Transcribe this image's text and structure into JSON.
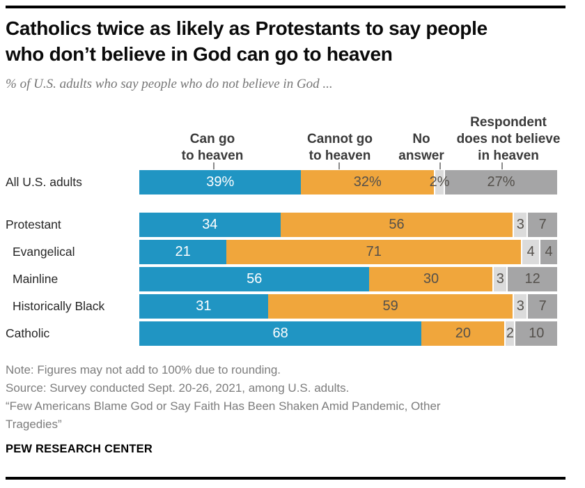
{
  "header": {
    "title_lines": [
      "Catholics twice as likely as Protestants to say people",
      "who don’t believe in God can go to heaven"
    ],
    "subtitle": "% of U.S. adults who say people who do not believe in God ..."
  },
  "chart_data": {
    "type": "bar",
    "stacked": true,
    "orientation": "horizontal",
    "xlim": [
      0,
      100
    ],
    "unit": "%",
    "columns": [
      {
        "name": "Can go to heaven",
        "label_lines": [
          "Can go",
          "to heaven"
        ]
      },
      {
        "name": "Cannot go to heaven",
        "label_lines": [
          "Cannot go",
          "to heaven"
        ]
      },
      {
        "name": "No answer",
        "label_lines": [
          "No",
          "answer"
        ]
      },
      {
        "name": "Respondent does not believe in heaven",
        "label_lines": [
          "Respondent",
          "does not believe",
          "in heaven"
        ]
      }
    ],
    "segment_colors": [
      "#2095c3",
      "#f0a63c",
      "#dbdbdb",
      "#a5a5a6"
    ],
    "rows": [
      {
        "category": "All U.S. adults",
        "indent": false,
        "group_gap_after": true,
        "values": [
          39,
          32,
          2,
          27
        ],
        "labels": [
          "39%",
          "32%",
          "2%",
          "27%"
        ]
      },
      {
        "category": "Protestant",
        "indent": false,
        "group_gap_after": false,
        "values": [
          34,
          56,
          3,
          7
        ],
        "labels": [
          "34",
          "56",
          "3",
          "7"
        ]
      },
      {
        "category": "Evangelical",
        "indent": true,
        "group_gap_after": false,
        "values": [
          21,
          71,
          4,
          4
        ],
        "labels": [
          "21",
          "71",
          "4",
          "4"
        ]
      },
      {
        "category": "Mainline",
        "indent": true,
        "group_gap_after": false,
        "values": [
          56,
          30,
          3,
          12
        ],
        "labels": [
          "56",
          "30",
          "3",
          "12"
        ]
      },
      {
        "category": "Historically Black",
        "indent": true,
        "group_gap_after": false,
        "values": [
          31,
          59,
          3,
          7
        ],
        "labels": [
          "31",
          "59",
          "3",
          "7"
        ]
      },
      {
        "category": "Catholic",
        "indent": false,
        "group_gap_after": false,
        "values": [
          68,
          20,
          2,
          10
        ],
        "labels": [
          "68",
          "20",
          "2",
          "10"
        ]
      }
    ]
  },
  "footer": {
    "note": "Note: Figures may not add to 100% due to rounding.",
    "source": "Source: Survey conducted Sept. 20-26, 2021, among U.S. adults.",
    "quote_lines": [
      "“Few Americans Blame God or Say Faith Has Been Shaken Amid Pandemic, Other",
      "Tragedies”"
    ],
    "brand": "PEW RESEARCH CENTER"
  }
}
